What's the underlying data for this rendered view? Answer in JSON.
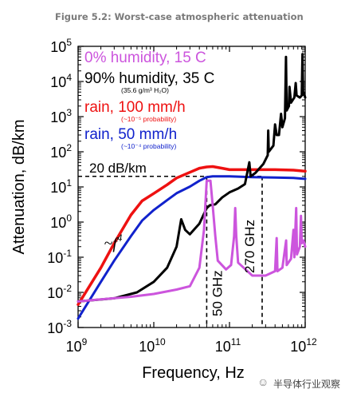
{
  "caption": "Figure 5.2: Worst-case atmospheric attenuation",
  "watermark": "半导体行业观察",
  "chart_data": {
    "type": "line",
    "title": "",
    "xlabel": "Frequency, Hz",
    "ylabel": "Attenuation, dB/km",
    "xscale": "log",
    "yscale": "log",
    "xlim": [
      1000000000.0,
      1000000000000.0
    ],
    "ylim": [
      0.001,
      100000
    ],
    "x_ticks": [
      {
        "value": 1000000000.0,
        "base": "10",
        "exp": "9"
      },
      {
        "value": 10000000000.0,
        "base": "10",
        "exp": "10"
      },
      {
        "value": 100000000000.0,
        "base": "10",
        "exp": "11"
      },
      {
        "value": 1000000000000.0,
        "base": "10",
        "exp": "12"
      }
    ],
    "y_ticks": [
      {
        "value": 0.001,
        "base": "10",
        "exp": "-3"
      },
      {
        "value": 0.01,
        "base": "10",
        "exp": "-2"
      },
      {
        "value": 0.1,
        "base": "10",
        "exp": "-1"
      },
      {
        "value": 1,
        "base": "10",
        "exp": "0"
      },
      {
        "value": 10,
        "base": "10",
        "exp": "1"
      },
      {
        "value": 100,
        "base": "10",
        "exp": "2"
      },
      {
        "value": 1000,
        "base": "10",
        "exp": "3"
      },
      {
        "value": 10000,
        "base": "10",
        "exp": "4"
      },
      {
        "value": 100000,
        "base": "10",
        "exp": "5"
      }
    ],
    "legend": [
      {
        "text": "0% humidity, 15 C",
        "sub": "",
        "color": "#cc55dd",
        "size": "large"
      },
      {
        "text": "90% humidity, 35 C",
        "sub": "(35.6 g/m³ H₂O)",
        "color": "#000000",
        "size": "large"
      },
      {
        "text": "rain, 100 mm/h",
        "sub": "(~10⁻⁵ probability)",
        "color": "#ee1111",
        "size": "large"
      },
      {
        "text": "rain, 50 mm/h",
        "sub": "(~10⁻⁴ probability)",
        "color": "#1122cc",
        "size": "large"
      }
    ],
    "annotations": {
      "ref_level": {
        "text": "20 dB/km",
        "value": 20
      },
      "f4": {
        "text": "~f",
        "sup": "4",
        "x": 2200000000.0,
        "y": 0.18
      },
      "freq_50": {
        "text": "50 GHz",
        "x": 50000000000.0
      },
      "freq_270": {
        "text": "270 GHz",
        "x": 270000000000.0
      }
    },
    "series": [
      {
        "name": "0% humidity, 15 C",
        "color": "#cc55dd",
        "width": 3,
        "points": [
          [
            1000000000.0,
            0.0055
          ],
          [
            2000000000.0,
            0.0063
          ],
          [
            5000000000.0,
            0.0075
          ],
          [
            10000000000.0,
            0.009
          ],
          [
            20000000000.0,
            0.012
          ],
          [
            30000000000.0,
            0.015
          ],
          [
            40000000000.0,
            0.05
          ],
          [
            46000000000.0,
            0.6
          ],
          [
            50000000000.0,
            15
          ],
          [
            56000000000.0,
            15
          ],
          [
            60000000000.0,
            3
          ],
          [
            65000000000.0,
            0.4
          ],
          [
            70000000000.0,
            0.08
          ],
          [
            90000000000.0,
            0.045
          ],
          [
            105000000000.0,
            0.06
          ],
          [
            115000000000.0,
            0.4
          ],
          [
            119000000000.0,
            2.5
          ],
          [
            123000000000.0,
            0.4
          ],
          [
            130000000000.0,
            0.07
          ],
          [
            200000000000.0,
            0.03
          ],
          [
            300000000000.0,
            0.03
          ],
          [
            400000000000.0,
            0.04
          ],
          [
            420000000000.0,
            0.35
          ],
          [
            430000000000.0,
            0.04
          ],
          [
            500000000000.0,
            0.05
          ],
          [
            560000000000.0,
            0.3
          ],
          [
            570000000000.0,
            0.06
          ],
          [
            650000000000.0,
            0.09
          ],
          [
            700000000000.0,
            0.6
          ],
          [
            720000000000.0,
            0.1
          ],
          [
            760000000000.0,
            2.5
          ],
          [
            780000000000.0,
            0.12
          ],
          [
            850000000000.0,
            0.2
          ],
          [
            880000000000.0,
            1.5
          ],
          [
            900000000000.0,
            0.25
          ],
          [
            950000000000.0,
            0.3
          ],
          [
            1000000000000.0,
            0.2
          ]
        ]
      },
      {
        "name": "90% humidity, 35 C",
        "color": "#000000",
        "width": 3,
        "points": [
          [
            1000000000.0,
            0.0055
          ],
          [
            3000000000.0,
            0.0068
          ],
          [
            6000000000.0,
            0.01
          ],
          [
            10000000000.0,
            0.02
          ],
          [
            15000000000.0,
            0.05
          ],
          [
            20000000000.0,
            0.2
          ],
          [
            23000000000.0,
            1.2
          ],
          [
            26000000000.0,
            0.6
          ],
          [
            30000000000.0,
            0.45
          ],
          [
            40000000000.0,
            0.9
          ],
          [
            50000000000.0,
            2.5
          ],
          [
            55000000000.0,
            3
          ],
          [
            65000000000.0,
            3.2
          ],
          [
            80000000000.0,
            5
          ],
          [
            100000000000.0,
            7
          ],
          [
            130000000000.0,
            9
          ],
          [
            160000000000.0,
            12
          ],
          [
            183000000000.0,
            50
          ],
          [
            190000000000.0,
            20
          ],
          [
            220000000000.0,
            25
          ],
          [
            280000000000.0,
            45
          ],
          [
            320000000000.0,
            80
          ],
          [
            325000000000.0,
            400
          ],
          [
            330000000000.0,
            100
          ],
          [
            380000000000.0,
            150
          ],
          [
            400000000000.0,
            600
          ],
          [
            420000000000.0,
            300
          ],
          [
            450000000000.0,
            300
          ],
          [
            480000000000.0,
            1200
          ],
          [
            500000000000.0,
            500
          ],
          [
            540000000000.0,
            900
          ],
          [
            557000000000.0,
            50000
          ],
          [
            570000000000.0,
            1500
          ],
          [
            610000000000.0,
            2000
          ],
          [
            620000000000.0,
            7000
          ],
          [
            650000000000.0,
            2500
          ],
          [
            720000000000.0,
            3500
          ],
          [
            750000000000.0,
            9000
          ],
          [
            770000000000.0,
            4000
          ],
          [
            850000000000.0,
            3500
          ],
          [
            900000000000.0,
            4000
          ],
          [
            920000000000.0,
            60000
          ],
          [
            940000000000.0,
            5000
          ],
          [
            980000000000.0,
            4000
          ],
          [
            1000000000000.0,
            3500
          ]
        ]
      },
      {
        "name": "rain, 100 mm/h",
        "color": "#ee1111",
        "width": 3.5,
        "points": [
          [
            1000000000.0,
            0.0045
          ],
          [
            2000000000.0,
            0.05
          ],
          [
            3000000000.0,
            0.25
          ],
          [
            5000000000.0,
            1.6
          ],
          [
            7000000000.0,
            4
          ],
          [
            10000000000.0,
            6.5
          ],
          [
            15000000000.0,
            11.5
          ],
          [
            20000000000.0,
            18
          ],
          [
            30000000000.0,
            26
          ],
          [
            40000000000.0,
            34
          ],
          [
            50000000000.0,
            37
          ],
          [
            60000000000.0,
            38
          ],
          [
            80000000000.0,
            34
          ],
          [
            100000000000.0,
            31
          ],
          [
            200000000000.0,
            31
          ],
          [
            400000000000.0,
            31
          ],
          [
            700000000000.0,
            30
          ],
          [
            1000000000000.0,
            28
          ]
        ]
      },
      {
        "name": "rain, 50 mm/h",
        "color": "#1122cc",
        "width": 3,
        "points": [
          [
            1000000000.0,
            0.0018
          ],
          [
            2000000000.0,
            0.02
          ],
          [
            3000000000.0,
            0.08
          ],
          [
            5000000000.0,
            0.4
          ],
          [
            7000000000.0,
            1.1
          ],
          [
            10000000000.0,
            2.2
          ],
          [
            15000000000.0,
            4.2
          ],
          [
            20000000000.0,
            6.6
          ],
          [
            30000000000.0,
            10.2
          ],
          [
            40000000000.0,
            15
          ],
          [
            50000000000.0,
            19
          ],
          [
            60000000000.0,
            20
          ],
          [
            80000000000.0,
            20
          ],
          [
            100000000000.0,
            20
          ],
          [
            200000000000.0,
            19
          ],
          [
            400000000000.0,
            18.5
          ],
          [
            700000000000.0,
            18
          ],
          [
            1000000000000.0,
            17
          ]
        ]
      }
    ]
  }
}
